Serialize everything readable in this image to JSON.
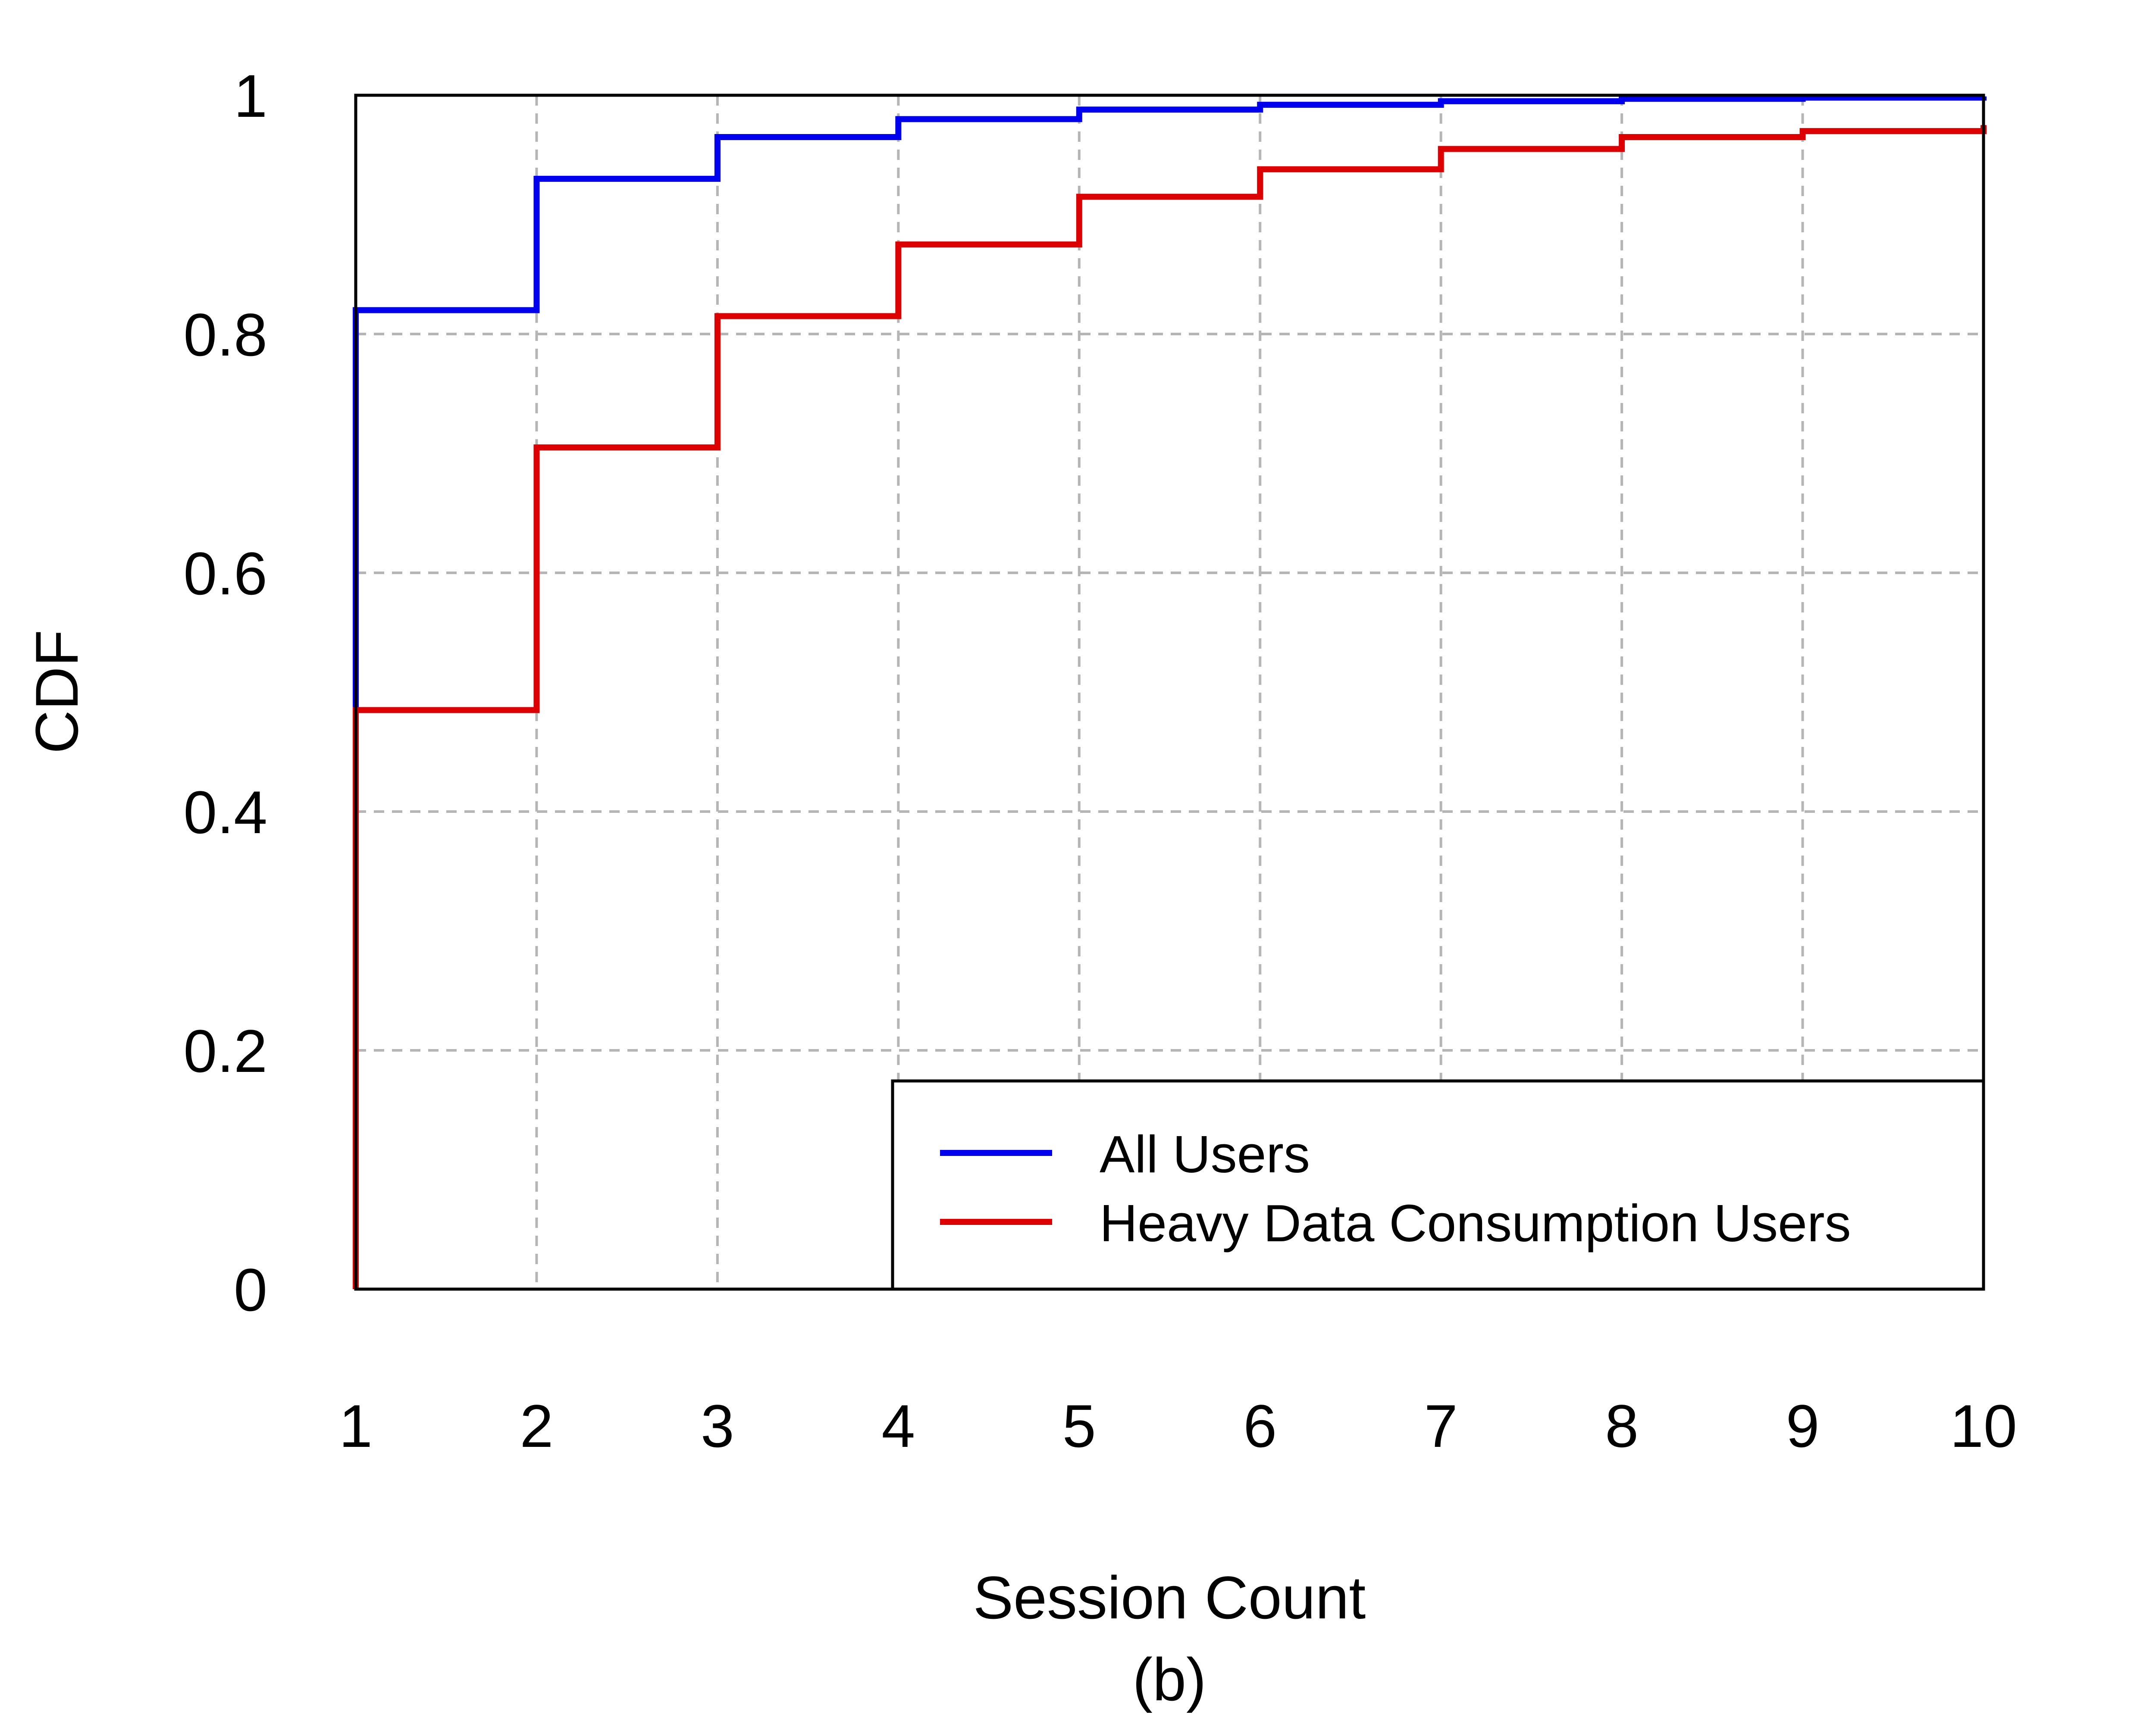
{
  "chart_data": {
    "type": "line",
    "step": true,
    "xlabel": "Session Count",
    "caption": "(b)",
    "ylabel": "CDF",
    "xlim": [
      1,
      10
    ],
    "ylim": [
      0,
      1
    ],
    "x_ticks": [
      1,
      2,
      3,
      4,
      5,
      6,
      7,
      8,
      9,
      10
    ],
    "y_ticks": [
      0,
      0.2,
      0.4,
      0.6,
      0.8,
      1
    ],
    "y_tick_labels": [
      "0",
      "0.2",
      "0.4",
      "0.6",
      "0.8",
      "1"
    ],
    "grid": true,
    "legend_position": "bottom-right",
    "series": [
      {
        "name": "All Users",
        "color": "#0000ee",
        "x": [
          1,
          2,
          3,
          4,
          5,
          6,
          7,
          8,
          9,
          10
        ],
        "y": [
          0.82,
          0.93,
          0.965,
          0.98,
          0.988,
          0.992,
          0.995,
          0.997,
          0.998,
          0.999
        ]
      },
      {
        "name": "Heavy Data Consumption Users",
        "color": "#dd0000",
        "x": [
          1,
          2,
          3,
          4,
          5,
          6,
          7,
          8,
          9,
          10
        ],
        "y": [
          0.485,
          0.705,
          0.815,
          0.875,
          0.915,
          0.938,
          0.955,
          0.965,
          0.97,
          0.975
        ]
      }
    ]
  }
}
